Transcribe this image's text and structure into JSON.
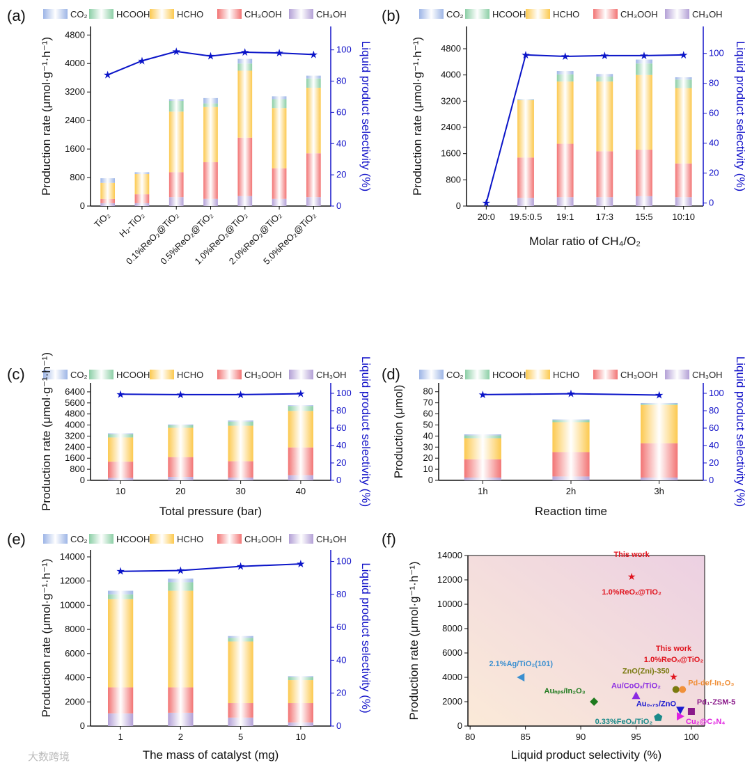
{
  "colors": {
    "CO2": "#9db5e6",
    "HCOOH": "#8ccfa6",
    "HCHO": "#fcc94f",
    "CH3OOH": "#f27474",
    "CH3OH": "#b3a0d6",
    "line": "#0a14c8",
    "axis_right": "#1010c8"
  },
  "legend": [
    "CO₂",
    "HCOOH",
    "HCHO",
    "CH₃OOH",
    "CH₃OH"
  ],
  "watermark": "大数跨境",
  "chart_data": [
    {
      "id": "a",
      "letter": "(a)",
      "type": "bar",
      "stacked": true,
      "ylabel": "Production rate (μmol·g⁻¹·h⁻¹)",
      "y2label": "Liquid product selectivity (%)",
      "xlabel": "",
      "ylim": [
        0,
        5040
      ],
      "yticks": [
        0,
        800,
        1600,
        2400,
        3200,
        4000,
        4800
      ],
      "y2lim": [
        0,
        115
      ],
      "y2ticks": [
        0,
        20,
        40,
        60,
        80,
        100
      ],
      "categories": [
        "TiO₂",
        "H₂-TiO₂",
        "0.1%ReO₂@TiO₂",
        "0.5%ReO₂@TiO₂",
        "1.0%ReO₂@TiO₂",
        "2.0%ReO₂@TiO₂",
        "5.0%ReO₂@TiO₂"
      ],
      "series": [
        {
          "name": "CH₃OH",
          "values": [
            80,
            80,
            250,
            200,
            280,
            200,
            250
          ]
        },
        {
          "name": "CH₃OOH",
          "values": [
            120,
            250,
            700,
            1030,
            1640,
            860,
            1230
          ]
        },
        {
          "name": "HCHO",
          "values": [
            450,
            570,
            1700,
            1550,
            1880,
            1690,
            1840
          ]
        },
        {
          "name": "HCOOH",
          "values": [
            0,
            0,
            300,
            100,
            200,
            250,
            260
          ]
        },
        {
          "name": "CO₂",
          "values": [
            130,
            50,
            50,
            150,
            130,
            80,
            80
          ]
        }
      ],
      "selectivity": [
        84,
        93,
        99,
        96,
        98.5,
        98,
        97
      ]
    },
    {
      "id": "b",
      "letter": "(b)",
      "type": "bar",
      "stacked": true,
      "ylabel": "Production rate (μmol·g⁻¹·h⁻¹)",
      "y2label": "Liquid product selectivity (%)",
      "xlabel": "Molar ratio of CH₄/O₂",
      "ylim": [
        0,
        5480
      ],
      "yticks": [
        0,
        800,
        1600,
        2400,
        3200,
        4000,
        4800
      ],
      "y2lim": [
        -2,
        118
      ],
      "y2ticks": [
        0,
        20,
        40,
        60,
        80,
        100
      ],
      "categories": [
        "20:0",
        "19.5:0.5",
        "19:1",
        "17:3",
        "15:5",
        "10:10"
      ],
      "series": [
        {
          "name": "CH₃OH",
          "values": [
            0,
            250,
            270,
            270,
            300,
            270
          ]
        },
        {
          "name": "CH₃OOH",
          "values": [
            0,
            1230,
            1630,
            1400,
            1420,
            1030
          ]
        },
        {
          "name": "HCHO",
          "values": [
            0,
            1750,
            1900,
            2130,
            2280,
            2300
          ]
        },
        {
          "name": "HCOOH",
          "values": [
            0,
            10,
            220,
            150,
            350,
            260
          ]
        },
        {
          "name": "CO₂",
          "values": [
            0,
            20,
            100,
            80,
            120,
            70
          ]
        }
      ],
      "selectivity": [
        0,
        99,
        98,
        98.5,
        98.5,
        99
      ]
    },
    {
      "id": "c",
      "letter": "(c)",
      "type": "bar",
      "stacked": true,
      "ylabel": "Production rate (μmol·g⁻¹·h⁻¹)",
      "y2label": "Liquid product selectivity (%)",
      "xlabel": "Total pressure (bar)",
      "ylim": [
        0,
        7050
      ],
      "yticks": [
        0,
        800,
        1600,
        2400,
        3200,
        4000,
        4800,
        5600,
        6400
      ],
      "y2lim": [
        0,
        112
      ],
      "y2ticks": [
        0,
        20,
        40,
        60,
        80,
        100
      ],
      "categories": [
        "10",
        "20",
        "30",
        "40"
      ],
      "series": [
        {
          "name": "CH₃OH",
          "values": [
            180,
            250,
            200,
            370
          ]
        },
        {
          "name": "CH₃OOH",
          "values": [
            1170,
            1430,
            1180,
            2010
          ]
        },
        {
          "name": "HCHO",
          "values": [
            1750,
            2120,
            2570,
            2640
          ]
        },
        {
          "name": "HCOOH",
          "values": [
            230,
            180,
            300,
            360
          ]
        },
        {
          "name": "CO₂",
          "values": [
            70,
            60,
            80,
            50
          ]
        }
      ],
      "selectivity": [
        99,
        98.5,
        98.5,
        99.5
      ]
    },
    {
      "id": "d",
      "letter": "(d)",
      "type": "bar",
      "stacked": true,
      "ylabel": "Production (μmol)",
      "y2label": "Liquid product selectivity (%)",
      "xlabel": "Reaction time",
      "ylim": [
        0,
        88
      ],
      "yticks": [
        0,
        10,
        20,
        30,
        40,
        50,
        60,
        70,
        80
      ],
      "y2lim": [
        0,
        112
      ],
      "y2ticks": [
        0,
        20,
        40,
        60,
        80,
        100
      ],
      "categories": [
        "1h",
        "2h",
        "3h"
      ],
      "series": [
        {
          "name": "CH₃OH",
          "values": [
            2.5,
            3.5,
            2.5
          ]
        },
        {
          "name": "CH₃OOH",
          "values": [
            16.5,
            22,
            31
          ]
        },
        {
          "name": "HCHO",
          "values": [
            19,
            27,
            34.5
          ]
        },
        {
          "name": "HCOOH",
          "values": [
            2.5,
            1.8,
            1
          ]
        },
        {
          "name": "CO₂",
          "values": [
            1,
            0.7,
            0.8
          ]
        }
      ],
      "selectivity": [
        98.5,
        99.5,
        98
      ]
    },
    {
      "id": "e",
      "letter": "(e)",
      "type": "bar",
      "stacked": true,
      "ylabel": "Production rate (μmol·g⁻¹·h⁻¹)",
      "y2label": "Liquid product selectivity (%)",
      "xlabel": "The mass of catalyst (mg)",
      "ylim": [
        0,
        14575
      ],
      "yticks": [
        0,
        2000,
        4000,
        6000,
        8000,
        10000,
        12000,
        14000
      ],
      "y2lim": [
        0,
        107
      ],
      "y2ticks": [
        0,
        20,
        40,
        60,
        80,
        100
      ],
      "categories": [
        "1",
        "2",
        "5",
        "10"
      ],
      "series": [
        {
          "name": "CH₃OH",
          "values": [
            1050,
            1100,
            700,
            300
          ]
        },
        {
          "name": "CH₃OOH",
          "values": [
            2150,
            2100,
            1200,
            1600
          ]
        },
        {
          "name": "HCHO",
          "values": [
            7300,
            8000,
            5100,
            1900
          ]
        },
        {
          "name": "HCOOH",
          "values": [
            400,
            700,
            300,
            250
          ]
        },
        {
          "name": "CO₂",
          "values": [
            300,
            300,
            150,
            80
          ]
        }
      ],
      "selectivity": [
        94,
        94.5,
        97,
        98.5
      ]
    },
    {
      "id": "f",
      "letter": "(f)",
      "type": "scatter",
      "ylabel": "Production rate (μmol·g⁻¹·h⁻¹)",
      "xlabel": "Liquid product selectivity (%)",
      "xlim": [
        79.8,
        101.2
      ],
      "xticks": [
        80,
        85,
        90,
        95,
        100
      ],
      "ylim": [
        0,
        14000
      ],
      "yticks": [
        0,
        2000,
        4000,
        6000,
        8000,
        10000,
        12000,
        14000
      ],
      "points": [
        {
          "label": "This work",
          "label2": "1.0%ReOₓ@TiO₂",
          "x": 94.6,
          "y": 12300,
          "marker": "star",
          "color": "#e0141e"
        },
        {
          "label": "This work",
          "label2": "1.0%ReOₓ@TiO₂",
          "x": 98.4,
          "y": 4050,
          "marker": "star",
          "color": "#e0141e"
        },
        {
          "label": "2.1%Ag/TiO₂(101)",
          "x": 84.6,
          "y": 4000,
          "marker": "tri-left",
          "color": "#3a8fd0"
        },
        {
          "label": "Au_NPs/In₂O₃",
          "x": 91.2,
          "y": 2000,
          "marker": "diamond",
          "color": "#1e7a1e"
        },
        {
          "label": "Au/CoOₓ/TiO₂",
          "x": 95.0,
          "y": 2500,
          "marker": "tri-up",
          "color": "#8a2be2"
        },
        {
          "label": "ZnO(Zni)-350",
          "x": 98.6,
          "y": 3000,
          "marker": "circle",
          "color": "#7a7a10"
        },
        {
          "label": "Pd-def-In₂O₃",
          "x": 99.2,
          "y": 3000,
          "marker": "circle",
          "color": "#f0903a"
        },
        {
          "label": "Au₀.₇₅/ZnO",
          "x": 99.0,
          "y": 1300,
          "marker": "tri-down",
          "color": "#1a1ad0"
        },
        {
          "label": "Pd₁-ZSM-5",
          "x": 100.0,
          "y": 1200,
          "marker": "square",
          "color": "#8a1a8a"
        },
        {
          "label": "0.33%FeOₓ/TiO₂",
          "x": 97.0,
          "y": 700,
          "marker": "pentagon",
          "color": "#1a8a8a"
        },
        {
          "label": "Cu₂@C₃N₄",
          "x": 99.0,
          "y": 800,
          "marker": "tri-right",
          "color": "#e020e0"
        }
      ]
    }
  ]
}
